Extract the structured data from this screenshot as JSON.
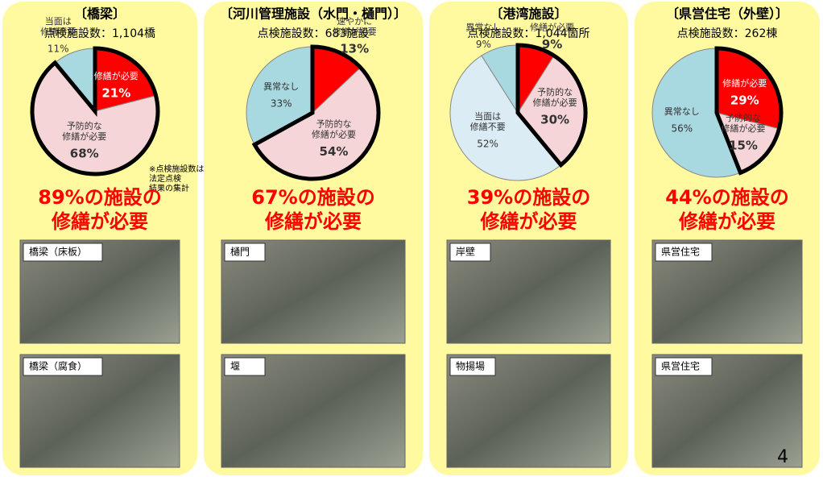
{
  "panels": [
    {
      "title": "〔橋梁〕",
      "subtitle": "点検施設数：1,104橋",
      "pie": {
        "type": "pie",
        "slices": [
          {
            "label": [
              "修繕が必要"
            ],
            "value": 21,
            "value_label": "21%",
            "color": "#ff0000",
            "outlined": true
          },
          {
            "label": [
              "予防的な",
              "修繕が必要"
            ],
            "value": 68,
            "value_label": "68%",
            "color": "#f5d5d8",
            "outlined": true
          },
          {
            "label": [
              "当面は",
              "修繕不要"
            ],
            "value": 11,
            "value_label": "11%",
            "color": "#a8d8e0",
            "outlined": false
          }
        ]
      },
      "note": [
        "※点検施設数は",
        "法定点検",
        "結果の集計"
      ],
      "headline": [
        "89%の施設の",
        "修繕が必要"
      ],
      "photos": [
        "橋梁（床板）",
        "橋梁（腐食）"
      ]
    },
    {
      "title": "〔河川管理施設（水門・樋門）〕",
      "subtitle": "点検施設数：683施設",
      "pie": {
        "type": "pie",
        "slices": [
          {
            "label": [
              "速やかに",
              "修繕が必要"
            ],
            "value": 13,
            "value_label": "13%",
            "color": "#ff0000",
            "outlined": true
          },
          {
            "label": [
              "予防的な",
              "修繕が必要"
            ],
            "value": 54,
            "value_label": "54%",
            "color": "#f5d5d8",
            "outlined": true
          },
          {
            "label": [
              "異常なし"
            ],
            "value": 33,
            "value_label": "33%",
            "color": "#a8d8e0",
            "outlined": false
          }
        ]
      },
      "headline": [
        "67%の施設の",
        "修繕が必要"
      ],
      "photos": [
        "樋門",
        "堰"
      ]
    },
    {
      "title": "〔港湾施設〕",
      "subtitle": "点検施設数：1,044箇所",
      "pie": {
        "type": "pie",
        "slices": [
          {
            "label": [
              "修繕が必要"
            ],
            "value": 9,
            "value_label": "9%",
            "color": "#ff0000",
            "outlined": true
          },
          {
            "label": [
              "予防的な",
              "修繕が必要"
            ],
            "value": 30,
            "value_label": "30%",
            "color": "#f5d5d8",
            "outlined": true
          },
          {
            "label": [
              "当面は",
              "修繕不要"
            ],
            "value": 52,
            "value_label": "52%",
            "color": "#dcecf4",
            "outlined": false
          },
          {
            "label": [
              "異常なし"
            ],
            "value": 9,
            "value_label": "9%",
            "color": "#a8d8e0",
            "outlined": false
          }
        ]
      },
      "headline": [
        "39%の施設の",
        "修繕が必要"
      ],
      "photos": [
        "岸壁",
        "物揚場"
      ]
    },
    {
      "title": "〔県営住宅（外壁）〕",
      "subtitle": "点検施設数：262棟",
      "pie": {
        "type": "pie",
        "slices": [
          {
            "label": [
              "修繕が必要"
            ],
            "value": 29,
            "value_label": "29%",
            "color": "#ff0000",
            "outlined": true
          },
          {
            "label": [
              "予防的な",
              "修繕が必要"
            ],
            "value": 15,
            "value_label": "15%",
            "color": "#f5d5d8",
            "outlined": true
          },
          {
            "label": [
              "異常なし"
            ],
            "value": 56,
            "value_label": "56%",
            "color": "#a8d8e0",
            "outlined": false
          }
        ]
      },
      "headline": [
        "44%の施設の",
        "修繕が必要"
      ],
      "photos": [
        "県営住宅",
        "県営住宅"
      ]
    }
  ],
  "page_number": "4"
}
